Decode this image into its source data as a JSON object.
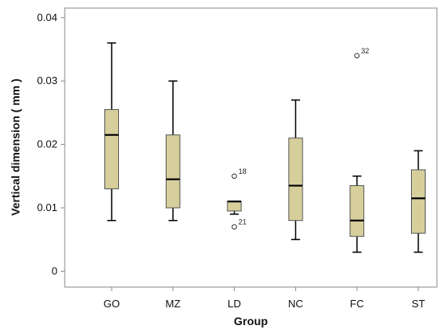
{
  "chart_data": {
    "type": "boxplot",
    "title": "",
    "xlabel": "Group",
    "ylabel": "Vertical dimension ( mm )",
    "ylim": [
      -0.0025,
      0.0415
    ],
    "yticks": [
      0,
      0.01,
      0.02,
      0.03,
      0.04
    ],
    "ytick_labels": [
      "0",
      "0.01",
      "0.02",
      "0.03",
      "0.04"
    ],
    "grid": false,
    "box_color": "#d6cf9c",
    "line_color": "#000000",
    "categories": [
      "GO",
      "MZ",
      "LD",
      "NC",
      "FC",
      "ST"
    ],
    "boxes": [
      {
        "category": "GO",
        "whisker_low": 0.008,
        "q1": 0.013,
        "median": 0.0215,
        "q3": 0.0255,
        "whisker_high": 0.036,
        "outliers": []
      },
      {
        "category": "MZ",
        "whisker_low": 0.008,
        "q1": 0.01,
        "median": 0.0145,
        "q3": 0.0215,
        "whisker_high": 0.03,
        "outliers": []
      },
      {
        "category": "LD",
        "whisker_low": 0.009,
        "q1": 0.0095,
        "median": 0.011,
        "q3": 0.011,
        "whisker_high": 0.011,
        "outliers": [
          {
            "value": 0.015,
            "label": "18"
          },
          {
            "value": 0.007,
            "label": "21"
          }
        ]
      },
      {
        "category": "NC",
        "whisker_low": 0.005,
        "q1": 0.008,
        "median": 0.0135,
        "q3": 0.021,
        "whisker_high": 0.027,
        "outliers": []
      },
      {
        "category": "FC",
        "whisker_low": 0.003,
        "q1": 0.0055,
        "median": 0.008,
        "q3": 0.0135,
        "whisker_high": 0.015,
        "outliers": [
          {
            "value": 0.034,
            "label": "32"
          }
        ]
      },
      {
        "category": "ST",
        "whisker_low": 0.003,
        "q1": 0.006,
        "median": 0.0115,
        "q3": 0.016,
        "whisker_high": 0.019,
        "outliers": []
      }
    ]
  }
}
